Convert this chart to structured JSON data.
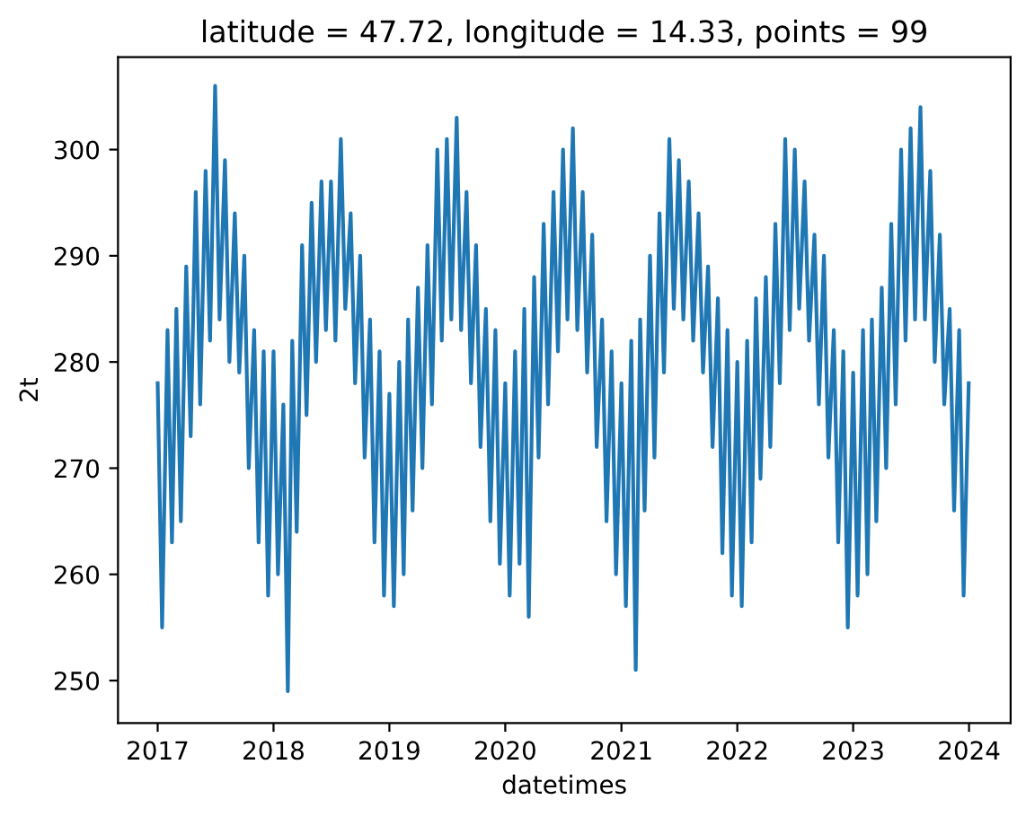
{
  "chart_data": {
    "type": "line",
    "title": "latitude = 47.72, longitude = 14.33, points = 99",
    "xlabel": "datetimes",
    "ylabel": "2t",
    "xlim": [
      "2016-08-29",
      "2024-05-11"
    ],
    "ylim": [
      246,
      308.7
    ],
    "xticks": [
      {
        "value": "2017-01-01",
        "label": "2017"
      },
      {
        "value": "2018-01-01",
        "label": "2018"
      },
      {
        "value": "2019-01-01",
        "label": "2019"
      },
      {
        "value": "2020-01-01",
        "label": "2020"
      },
      {
        "value": "2021-01-01",
        "label": "2021"
      },
      {
        "value": "2022-01-01",
        "label": "2022"
      },
      {
        "value": "2023-01-01",
        "label": "2023"
      },
      {
        "value": "2024-01-01",
        "label": "2024"
      }
    ],
    "yticks": [
      250,
      260,
      270,
      280,
      290,
      300
    ],
    "series": [
      {
        "color": "#1f77b4",
        "x": [
          "2017-01-01",
          "2017-01-15",
          "2017-02-01",
          "2017-02-15",
          "2017-03-01",
          "2017-03-15",
          "2017-04-01",
          "2017-04-15",
          "2017-05-01",
          "2017-05-15",
          "2017-06-01",
          "2017-06-15",
          "2017-07-01",
          "2017-07-15",
          "2017-08-01",
          "2017-08-15",
          "2017-09-01",
          "2017-09-15",
          "2017-10-01",
          "2017-10-15",
          "2017-11-01",
          "2017-11-15",
          "2017-12-01",
          "2017-12-15",
          "2018-01-01",
          "2018-01-15",
          "2018-02-01",
          "2018-02-15",
          "2018-03-01",
          "2018-03-15",
          "2018-04-01",
          "2018-04-15",
          "2018-05-01",
          "2018-05-15",
          "2018-06-01",
          "2018-06-15",
          "2018-07-01",
          "2018-07-15",
          "2018-08-01",
          "2018-08-15",
          "2018-09-01",
          "2018-09-15",
          "2018-10-01",
          "2018-10-15",
          "2018-11-01",
          "2018-11-15",
          "2018-12-01",
          "2018-12-15",
          "2019-01-01",
          "2019-01-15",
          "2019-02-01",
          "2019-02-15",
          "2019-03-01",
          "2019-03-15",
          "2019-04-01",
          "2019-04-15",
          "2019-05-01",
          "2019-05-15",
          "2019-06-01",
          "2019-06-15",
          "2019-07-01",
          "2019-07-15",
          "2019-08-01",
          "2019-08-15",
          "2019-09-01",
          "2019-09-15",
          "2019-10-01",
          "2019-10-15",
          "2019-11-01",
          "2019-11-15",
          "2019-12-01",
          "2019-12-15",
          "2020-01-01",
          "2020-01-15",
          "2020-02-01",
          "2020-02-15",
          "2020-03-01",
          "2020-03-15",
          "2020-04-01",
          "2020-04-15",
          "2020-05-01",
          "2020-05-15",
          "2020-06-01",
          "2020-06-15",
          "2020-07-01",
          "2020-07-15",
          "2020-08-01",
          "2020-08-15",
          "2020-09-01",
          "2020-09-15",
          "2020-10-01",
          "2020-10-15",
          "2020-11-01",
          "2020-11-15",
          "2020-12-01",
          "2020-12-15",
          "2021-01-01",
          "2021-01-15",
          "2021-02-01",
          "2021-02-15",
          "2021-03-01",
          "2021-03-15",
          "2021-04-01",
          "2021-04-15",
          "2021-05-01",
          "2021-05-15",
          "2021-06-01",
          "2021-06-15",
          "2021-07-01",
          "2021-07-15",
          "2021-08-01",
          "2021-08-15",
          "2021-09-01",
          "2021-09-15",
          "2021-10-01",
          "2021-10-15",
          "2021-11-01",
          "2021-11-15",
          "2021-12-01",
          "2021-12-15",
          "2022-01-01",
          "2022-01-15",
          "2022-02-01",
          "2022-02-15",
          "2022-03-01",
          "2022-03-15",
          "2022-04-01",
          "2022-04-15",
          "2022-05-01",
          "2022-05-15",
          "2022-06-01",
          "2022-06-15",
          "2022-07-01",
          "2022-07-15",
          "2022-08-01",
          "2022-08-15",
          "2022-09-01",
          "2022-09-15",
          "2022-10-01",
          "2022-10-15",
          "2022-11-01",
          "2022-11-15",
          "2022-12-01",
          "2022-12-15",
          "2023-01-01",
          "2023-01-15",
          "2023-02-01",
          "2023-02-15",
          "2023-03-01",
          "2023-03-15",
          "2023-04-01",
          "2023-04-15",
          "2023-05-01",
          "2023-05-15",
          "2023-06-01",
          "2023-06-15",
          "2023-07-01",
          "2023-07-15",
          "2023-08-01",
          "2023-08-15",
          "2023-09-01",
          "2023-09-15",
          "2023-10-01",
          "2023-10-15",
          "2023-11-01",
          "2023-11-15",
          "2023-12-01",
          "2023-12-15",
          "2023-12-31"
        ],
        "values": [
          278,
          255,
          283,
          263,
          285,
          265,
          289,
          273,
          296,
          276,
          298,
          282,
          306,
          284,
          299,
          280,
          294,
          279,
          290,
          270,
          283,
          263,
          281,
          258,
          281,
          260,
          276,
          249,
          282,
          264,
          291,
          275,
          295,
          280,
          297,
          283,
          297,
          282,
          301,
          285,
          294,
          278,
          290,
          271,
          284,
          263,
          281,
          258,
          277,
          257,
          280,
          260,
          284,
          266,
          287,
          270,
          291,
          276,
          300,
          282,
          301,
          284,
          303,
          283,
          296,
          278,
          291,
          272,
          285,
          265,
          283,
          261,
          278,
          258,
          281,
          261,
          285,
          256,
          288,
          271,
          293,
          276,
          296,
          281,
          300,
          284,
          302,
          283,
          296,
          279,
          292,
          272,
          284,
          265,
          281,
          260,
          278,
          257,
          282,
          251,
          284,
          266,
          290,
          271,
          294,
          279,
          301,
          285,
          299,
          284,
          297,
          282,
          294,
          279,
          289,
          272,
          286,
          262,
          283,
          258,
          280,
          257,
          282,
          263,
          286,
          269,
          288,
          272,
          293,
          278,
          301,
          283,
          300,
          285,
          297,
          282,
          292,
          276,
          290,
          271,
          283,
          263,
          281,
          255,
          279,
          258,
          283,
          260,
          284,
          265,
          287,
          270,
          293,
          276,
          300,
          282,
          302,
          284,
          304,
          284,
          298,
          280,
          292,
          276,
          285,
          266,
          283,
          258,
          278
        ]
      }
    ]
  }
}
